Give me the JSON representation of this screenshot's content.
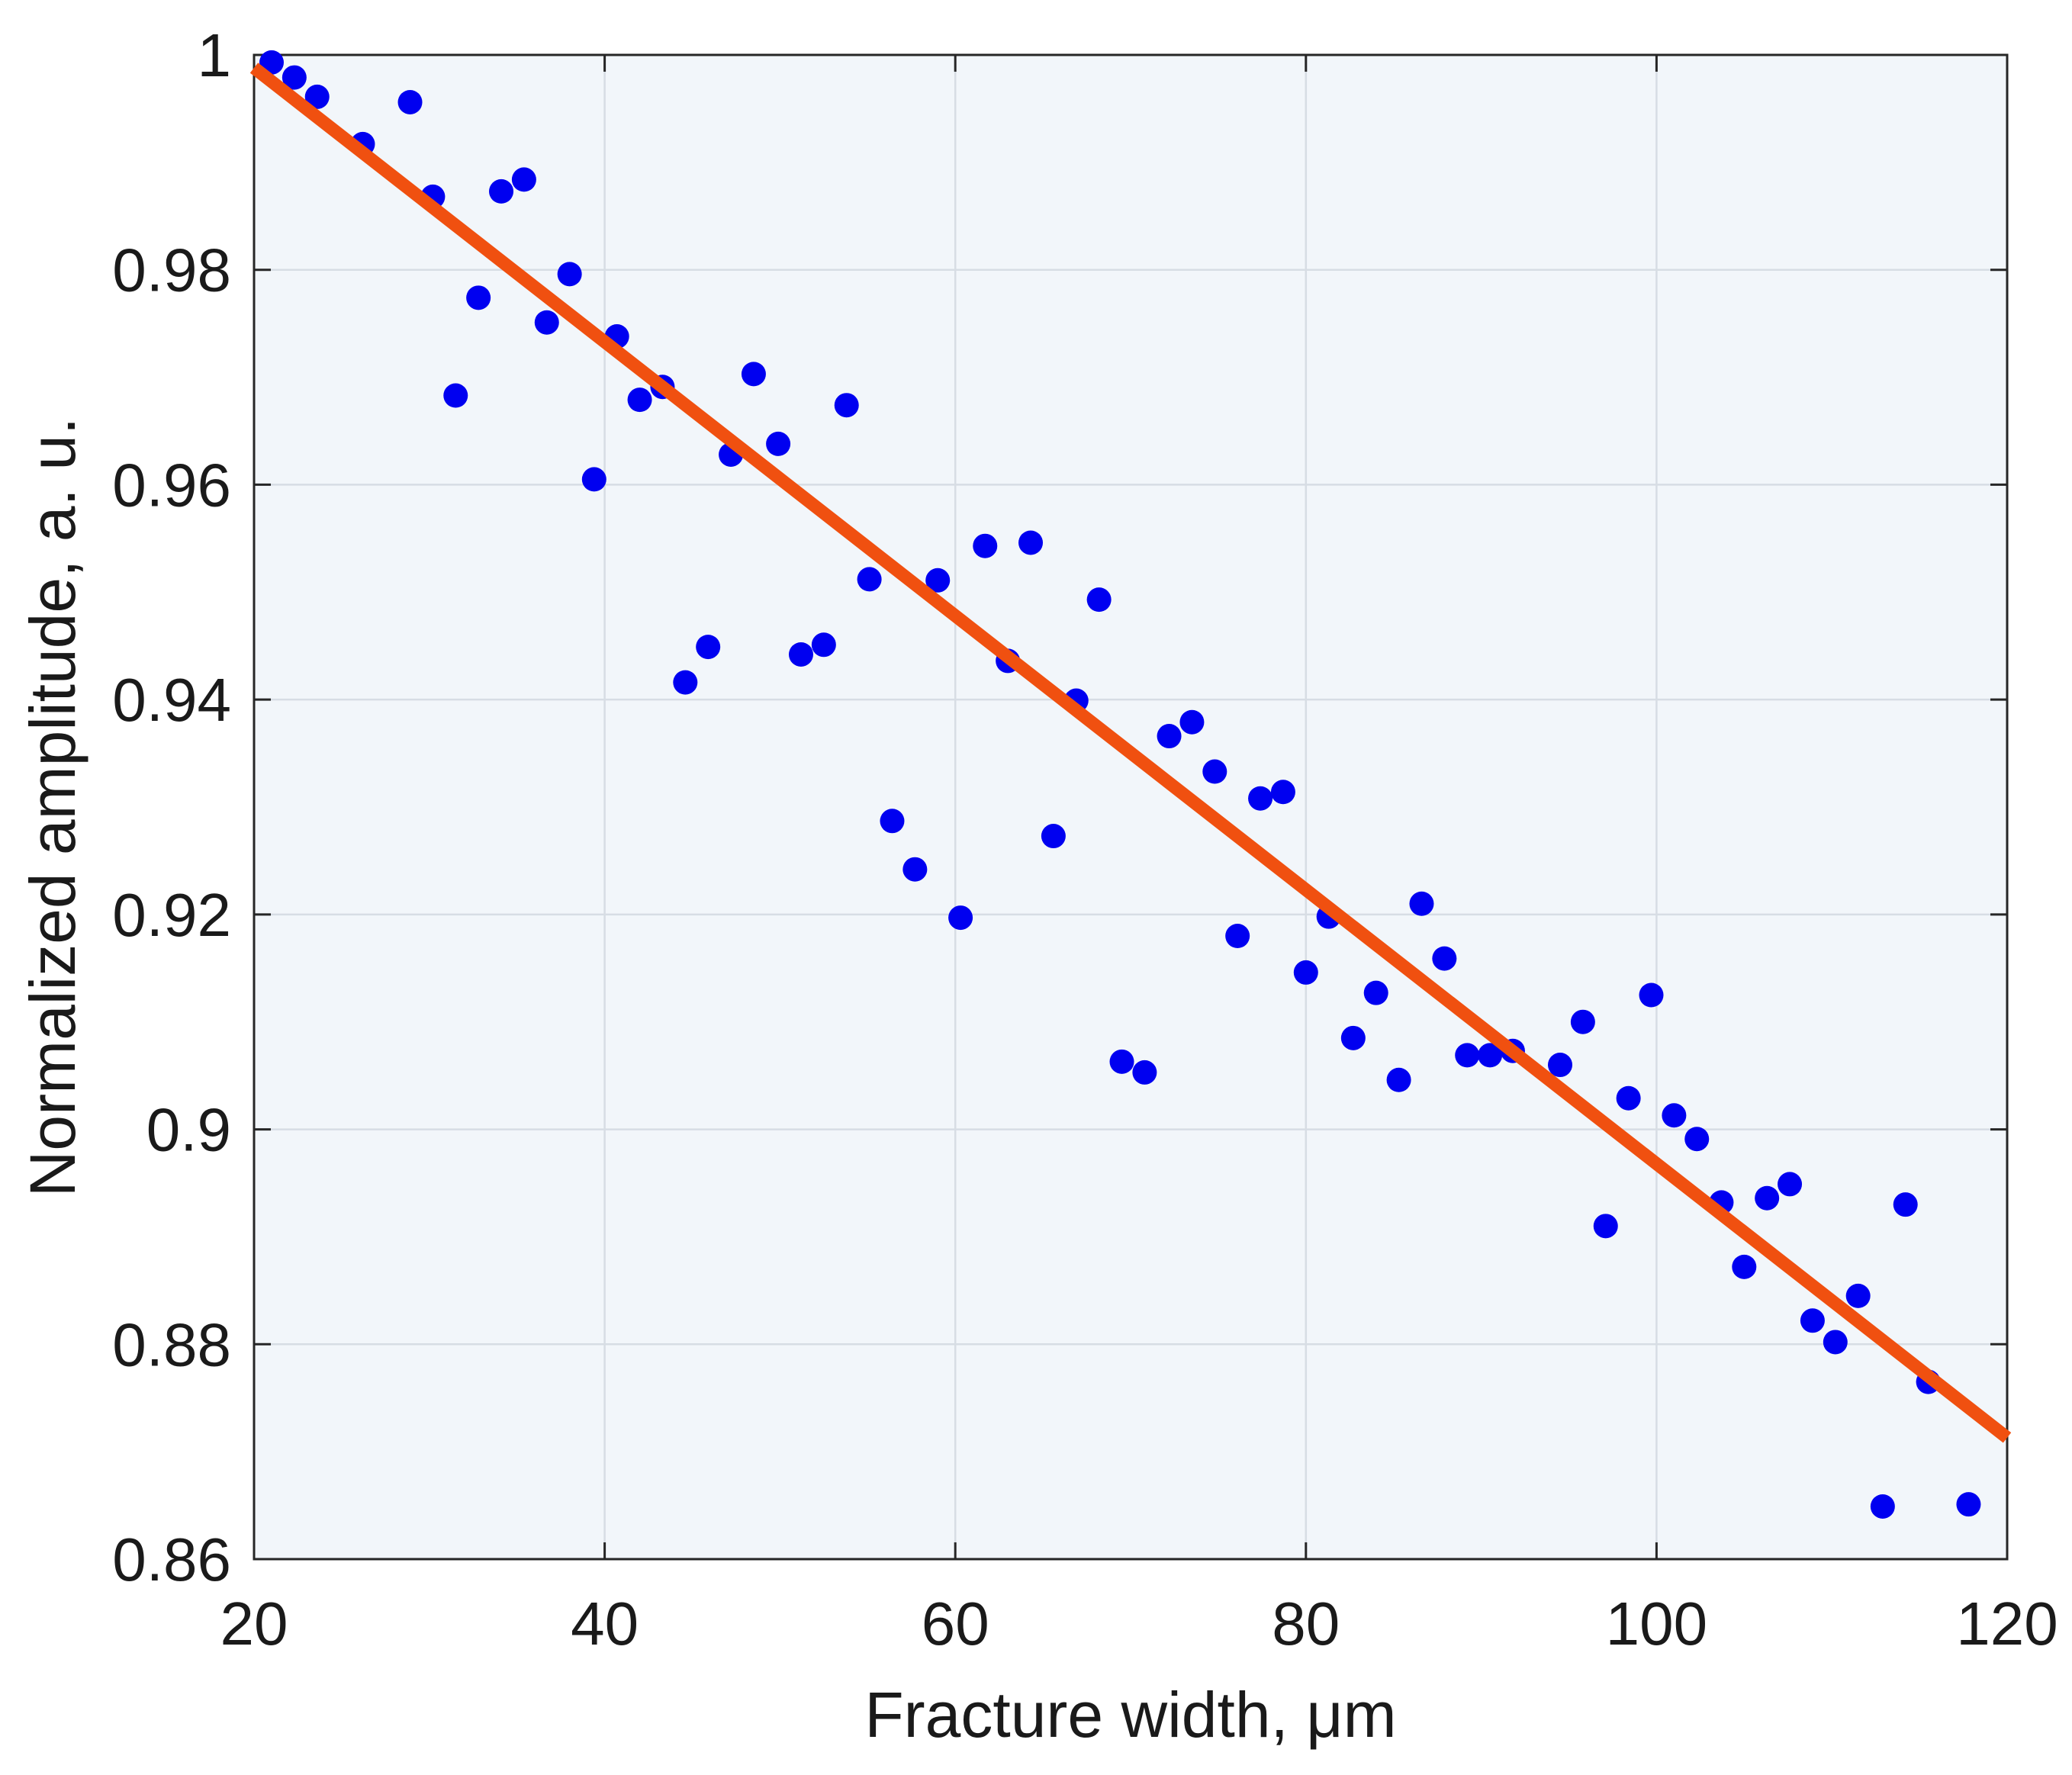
{
  "chart_data": {
    "type": "scatter",
    "title": "",
    "xlabel": "Fracture width, μm",
    "ylabel": "Normalized amplitude, a. u.",
    "xlim": [
      20,
      120
    ],
    "ylim": [
      0.86,
      1.0
    ],
    "xticks": [
      20,
      40,
      60,
      80,
      100,
      120
    ],
    "xtick_labels": [
      "20",
      "40",
      "60",
      "80",
      "100",
      "120"
    ],
    "yticks": [
      0.86,
      0.88,
      0.9,
      0.92,
      0.94,
      0.96,
      0.98,
      1.0
    ],
    "ytick_labels": [
      "0.86",
      "0.88",
      "0.9",
      "0.92",
      "0.94",
      "0.96",
      "0.98",
      "1"
    ],
    "grid": true,
    "legend": "none",
    "colors": {
      "points": "#0000f0",
      "fit": "#f05010",
      "background": "#f2f6fa",
      "grid": "#d7dde4"
    },
    "series": [
      {
        "kind": "points",
        "x": [
          21.0,
          22.3,
          23.6,
          26.2,
          28.9,
          30.2,
          31.5,
          32.8,
          34.1,
          35.4,
          36.7,
          38.0,
          39.4,
          40.7,
          42.0,
          43.3,
          44.6,
          45.9,
          47.2,
          48.5,
          49.9,
          51.2,
          52.5,
          53.8,
          55.1,
          56.4,
          57.7,
          59.0,
          60.3,
          61.7,
          63.0,
          64.3,
          65.6,
          66.9,
          68.2,
          69.5,
          70.8,
          72.2,
          73.5,
          74.8,
          76.1,
          77.4,
          78.7,
          80.0,
          81.3,
          82.7,
          84.0,
          85.3,
          86.6,
          87.9,
          89.2,
          90.5,
          91.8,
          94.5,
          95.8,
          97.1,
          98.4,
          99.7,
          101.0,
          102.3,
          103.7,
          105.0,
          106.3,
          107.6,
          108.9,
          110.2,
          111.5,
          112.9,
          114.2,
          115.5,
          117.8
        ],
        "y": [
          0.9993,
          0.9979,
          0.9961,
          0.9917,
          0.9956,
          0.9868,
          0.9683,
          0.9774,
          0.9873,
          0.9884,
          0.9751,
          0.9796,
          0.9605,
          0.9738,
          0.9679,
          0.9691,
          0.9416,
          0.9449,
          0.9628,
          0.9703,
          0.9638,
          0.9442,
          0.9451,
          0.9674,
          0.9512,
          0.9287,
          0.9242,
          0.9511,
          0.9197,
          0.9543,
          0.9436,
          0.9546,
          0.9273,
          0.9399,
          0.9493,
          0.9063,
          0.9053,
          0.9366,
          0.9379,
          0.9333,
          0.918,
          0.9308,
          0.9314,
          0.9146,
          0.9198,
          0.9085,
          0.9127,
          0.9046,
          0.921,
          0.9159,
          0.9069,
          0.9069,
          0.9073,
          0.906,
          0.91,
          0.891,
          0.9029,
          0.9125,
          0.9013,
          0.8991,
          0.8932,
          0.8872,
          0.8936,
          0.8949,
          0.8822,
          0.8802,
          0.8845,
          0.8649,
          0.893,
          0.8765,
          0.8651
        ]
      },
      {
        "kind": "fit",
        "x": [
          20,
          120
        ],
        "y": [
          0.9988,
          0.8713
        ]
      }
    ]
  }
}
